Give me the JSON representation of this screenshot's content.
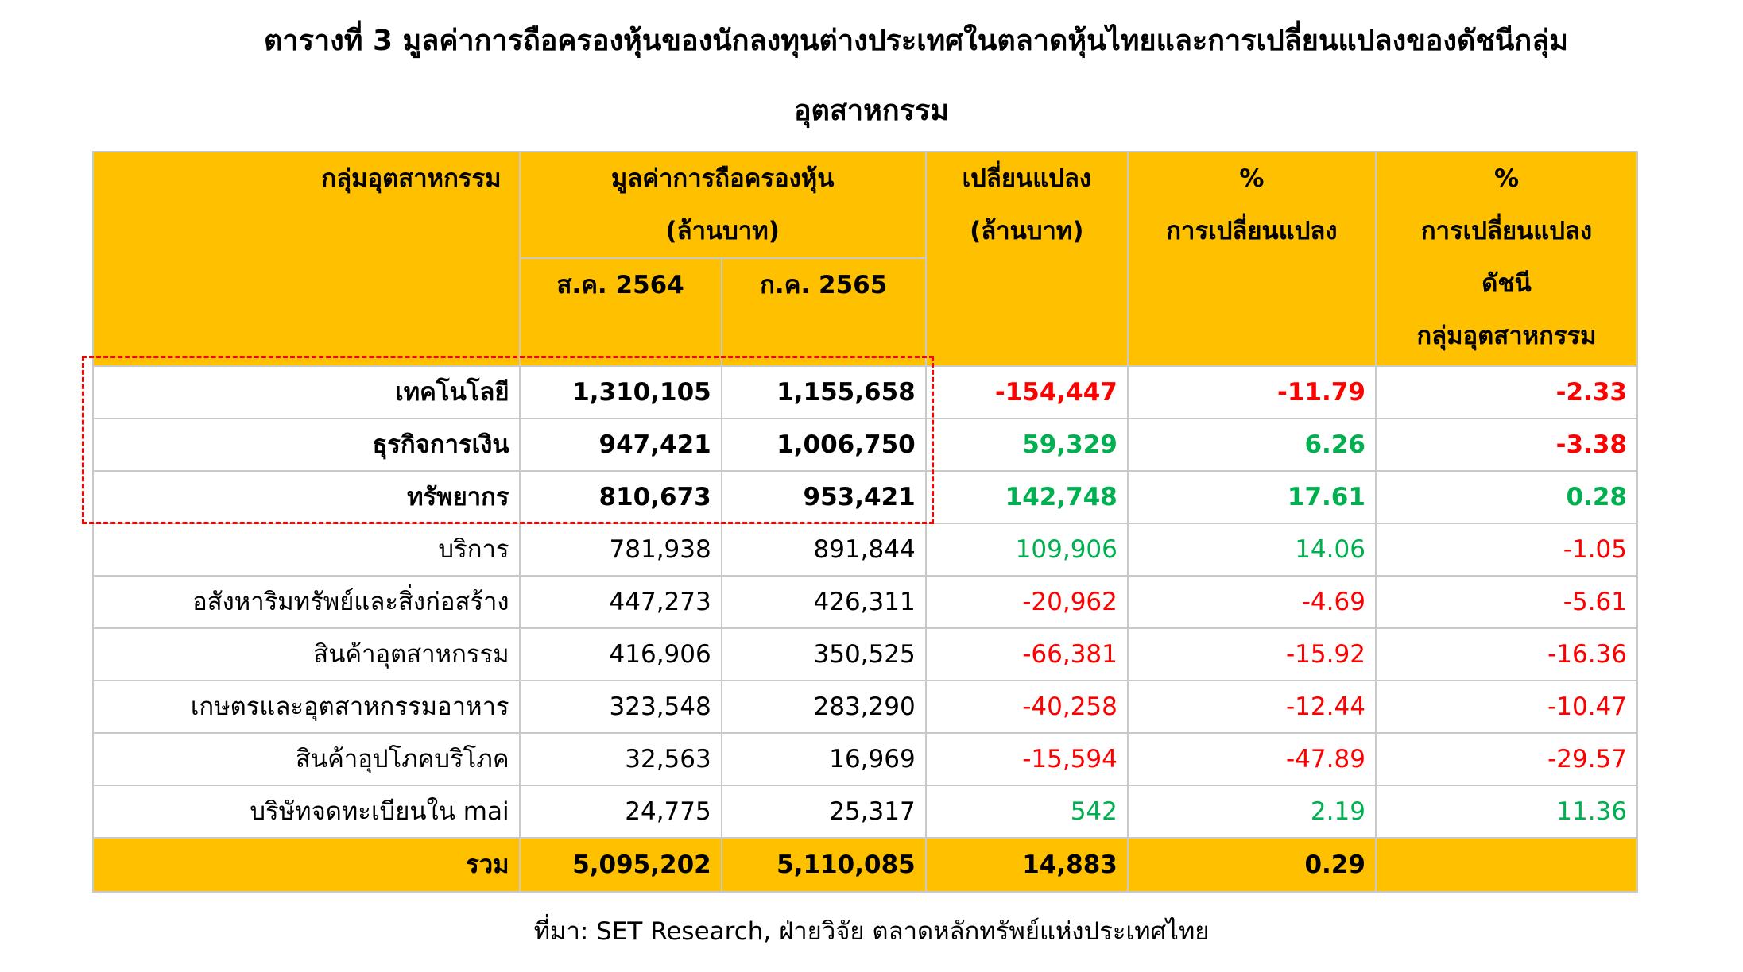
{
  "title": {
    "line1": "ตารางที่ 3 มูลค่าการถือครองหุ้นของนักลงทุนต่างประเทศในตลาดหุ้นไทยและการเปลี่ยนแปลงของดัชนีกลุ่ม",
    "line2": "อุตสาหกรรม"
  },
  "headers": {
    "group": "กลุ่มอุตสาหกรรม",
    "holding_line1": "มูลค่าการถือครองหุ้น",
    "holding_line2": "(ล้านบาท)",
    "aug_2564": "ส.ค. 2564",
    "jul_2565": "ก.ค. 2565",
    "change_line1": "เปลี่ยนแปลง",
    "change_line2": "(ล้านบาท)",
    "pct_change_line1": "%",
    "pct_change_line2": "การเปลี่ยนแปลง",
    "idx_change_line1": "%",
    "idx_change_line2": "การเปลี่ยนแปลง",
    "idx_change_line3": "ดัชนี",
    "idx_change_line4": "กลุ่มอุตสาหกรรม"
  },
  "rows": [
    {
      "name": "เทคโนโลยี",
      "aug": "1,310,105",
      "jul": "1,155,658",
      "change": "-154,447",
      "pct": "-11.79",
      "idx": "-2.33"
    },
    {
      "name": "ธุรกิจการเงิน",
      "aug": "947,421",
      "jul": "1,006,750",
      "change": "59,329",
      "pct": "6.26",
      "idx": "-3.38"
    },
    {
      "name": "ทรัพยากร",
      "aug": "810,673",
      "jul": "953,421",
      "change": "142,748",
      "pct": "17.61",
      "idx": "0.28"
    },
    {
      "name": "บริการ",
      "aug": "781,938",
      "jul": "891,844",
      "change": "109,906",
      "pct": "14.06",
      "idx": "-1.05"
    },
    {
      "name": "อสังหาริมทรัพย์และสิ่งก่อสร้าง",
      "aug": "447,273",
      "jul": "426,311",
      "change": "-20,962",
      "pct": "-4.69",
      "idx": "-5.61"
    },
    {
      "name": "สินค้าอุตสาหกรรม",
      "aug": "416,906",
      "jul": "350,525",
      "change": "-66,381",
      "pct": "-15.92",
      "idx": "-16.36"
    },
    {
      "name": "เกษตรและอุตสาหกรรมอาหาร",
      "aug": "323,548",
      "jul": "283,290",
      "change": "-40,258",
      "pct": "-12.44",
      "idx": "-10.47"
    },
    {
      "name": "สินค้าอุปโภคบริโภค",
      "aug": "32,563",
      "jul": "16,969",
      "change": "-15,594",
      "pct": "-47.89",
      "idx": "-29.57"
    },
    {
      "name": "บริษัทจดทะเบียนใน mai",
      "aug": "24,775",
      "jul": "25,317",
      "change": "542",
      "pct": "2.19",
      "idx": "11.36"
    }
  ],
  "total": {
    "name": "รวม",
    "aug": "5,095,202",
    "jul": "5,110,085",
    "change": "14,883",
    "pct": "0.29",
    "idx": ""
  },
  "colors": {
    "header_bg": "#ffc000",
    "negative": "#ff0000",
    "positive": "#00b050",
    "highlight": "#ff0000"
  },
  "source": "ที่มา: SET Research, ฝ่ายวิจัย ตลาดหลักทรัพย์แห่งประเทศไทย"
}
